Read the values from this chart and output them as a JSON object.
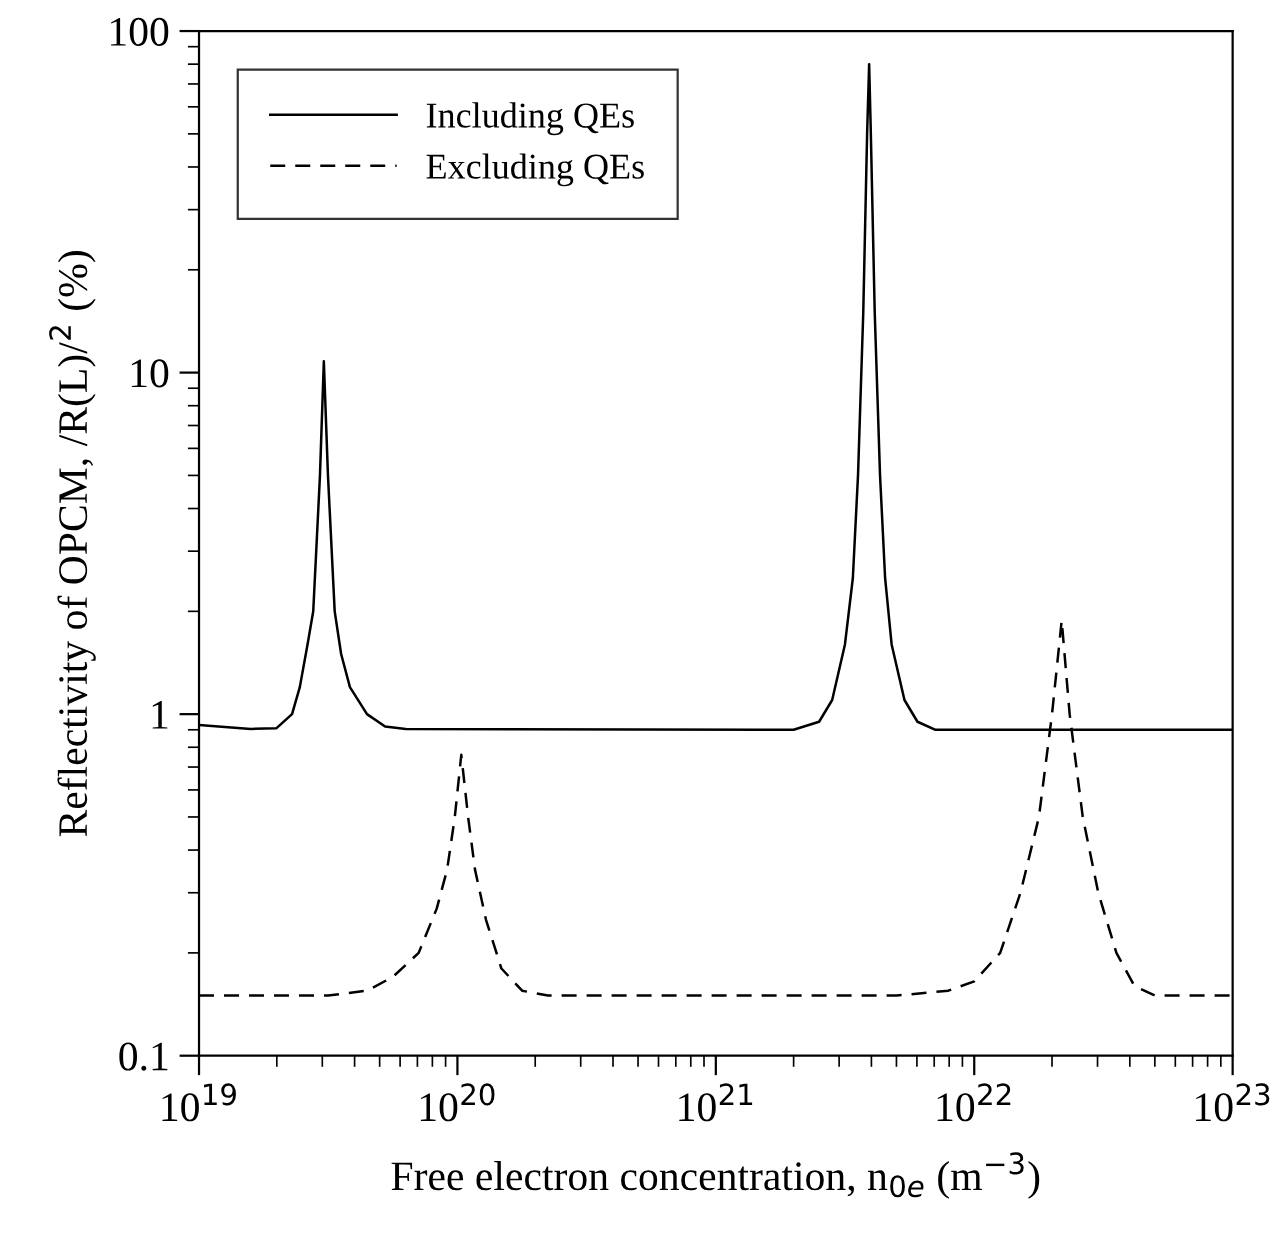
{
  "chart_data": {
    "type": "line",
    "xlabel": "Free electron concentration, n$_{0e}$ (m$^{−3}$)",
    "ylabel": "Reflectivity of OPCM, /R(L)/$^{2}$ (%)",
    "log": "xy",
    "xlim": [
      1e+19,
      1e+23
    ],
    "ylim": [
      0.1,
      100
    ],
    "xticks": [
      {
        "value": 1e+19,
        "label": "10$^{19}$"
      },
      {
        "value": 1e+20,
        "label": "10$^{20}$"
      },
      {
        "value": 1e+21,
        "label": "10$^{21}$"
      },
      {
        "value": 1e+22,
        "label": "10$^{22}$"
      },
      {
        "value": 1e+23,
        "label": "10$^{23}$"
      }
    ],
    "yticks": [
      0.1,
      1,
      10,
      100
    ],
    "legend": "top left",
    "grid": false,
    "marker": "none",
    "series": [
      {
        "name": "Including QEs",
        "color": "#000000",
        "line_style": "solid",
        "x": [
          1e+19,
          1.585e+19,
          1.995e+19,
          2.291e+19,
          2.455e+19,
          2.63e+19,
          2.767e+19,
          2.938e+19,
          3.041e+19,
          3.155e+19,
          3.35e+19,
          3.548e+19,
          3.837e+19,
          4.467e+19,
          5.248e+19,
          6.31e+19,
          2e+21,
          2.51e+21,
          2.82e+21,
          3.16e+21,
          3.39e+21,
          3.55e+21,
          3.72e+21,
          3.85e+21,
          3.92e+21,
          3.98e+21,
          4.12e+21,
          4.32e+21,
          4.52e+21,
          4.79e+21,
          5.37e+21,
          6.03e+21,
          7.08e+21,
          1e+23
        ],
        "values": [
          0.93,
          0.905,
          0.91,
          1.0,
          1.2,
          1.6,
          2,
          5,
          10.8,
          5,
          2,
          1.5,
          1.2,
          1.0,
          0.92,
          0.905,
          0.9,
          0.95,
          1.1,
          1.6,
          2.5,
          5,
          15,
          50,
          80,
          50,
          15,
          5,
          2.5,
          1.6,
          1.1,
          0.95,
          0.9,
          0.9
        ]
      },
      {
        "name": "Excluding QEs",
        "color": "#000000",
        "line_style": "dashed",
        "x": [
          1e+19,
          3.16e+19,
          4.47e+19,
          5.62e+19,
          7.08e+19,
          8.32e+19,
          9.12e+19,
          9.77e+19,
          1.035e+20,
          1.1e+20,
          1.17e+20,
          1.29e+20,
          1.48e+20,
          1.78e+20,
          2.24e+20,
          5.01e+21,
          7.94e+21,
          1e+22,
          1.26e+22,
          1.51e+22,
          1.78e+22,
          2e+22,
          2.18e+22,
          2.34e+22,
          2.63e+22,
          3.02e+22,
          3.55e+22,
          4.17e+22,
          5.01e+22,
          1e+23
        ],
        "values": [
          0.15,
          0.15,
          0.155,
          0.17,
          0.2,
          0.27,
          0.35,
          0.5,
          0.76,
          0.5,
          0.35,
          0.25,
          0.18,
          0.155,
          0.15,
          0.15,
          0.155,
          0.165,
          0.2,
          0.3,
          0.5,
          1.0,
          1.88,
          1.0,
          0.5,
          0.3,
          0.2,
          0.16,
          0.15,
          0.15
        ]
      }
    ]
  }
}
